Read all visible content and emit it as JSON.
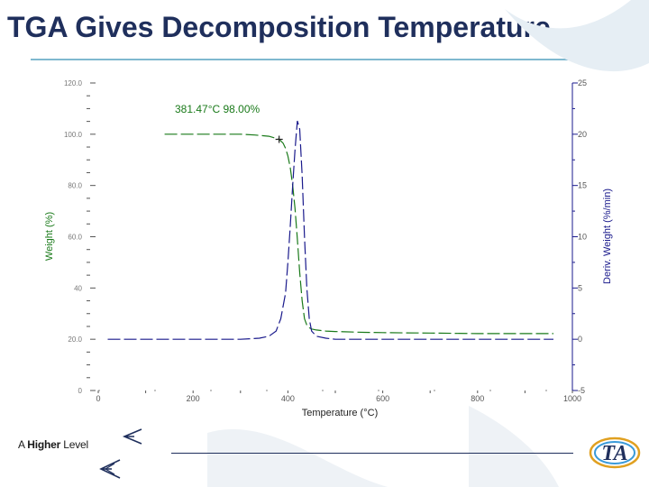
{
  "slide": {
    "title": "TGA Gives Decomposition Temperature",
    "footer_prefix": "A",
    "footer_bold": "Higher",
    "footer_suffix": "Level",
    "logo_text": "TA"
  },
  "colors": {
    "title": "#1f2f5c",
    "weight_series": "#1a7a1a",
    "deriv_series": "#1a1a8c",
    "rule": "#7fb8cf"
  },
  "chart_data": {
    "type": "line",
    "xlabel": "Temperature (°C)",
    "ylabel_left": "Weight (%)",
    "ylabel_right": "Deriv. Weight (%/min)",
    "xlim": [
      0,
      1000
    ],
    "ylim_left": [
      0,
      120
    ],
    "ylim_right": [
      -5,
      25
    ],
    "x_ticks": [
      0,
      200,
      400,
      600,
      800,
      1000
    ],
    "x_tick_labels": [
      "0",
      "200",
      "400",
      "600",
      "800",
      "1000"
    ],
    "y_left_ticks": [
      0,
      20,
      40,
      60,
      80,
      100,
      120
    ],
    "y_left_tick_labels": [
      "0",
      "20.0",
      "40",
      "60.0",
      "80.0",
      "100.0",
      "120.0"
    ],
    "y_right_ticks": [
      -5,
      0,
      5,
      10,
      15,
      20,
      25
    ],
    "y_right_tick_labels": [
      "-5",
      "0",
      "5",
      "10",
      "15",
      "20",
      "25"
    ],
    "annotation": {
      "text": "381.47°C 98.00%",
      "x": 381.47,
      "y": 98.0
    },
    "series": [
      {
        "axis": "left",
        "x": [
          140,
          200,
          250,
          300,
          330,
          360,
          381.47,
          390,
          395,
          400,
          405,
          410,
          415,
          420,
          425,
          430,
          435,
          440,
          445,
          450,
          460,
          470,
          480,
          500,
          520,
          540,
          560,
          600,
          650,
          700,
          750,
          800,
          850,
          900,
          960
        ],
        "y": [
          100,
          100,
          100,
          100,
          99.7,
          99.2,
          98.0,
          96.5,
          94.5,
          91.5,
          87,
          80,
          71,
          59,
          46,
          35,
          28,
          25.5,
          24.5,
          24,
          23.6,
          23.4,
          23.2,
          23.0,
          22.9,
          22.8,
          22.7,
          22.6,
          22.5,
          22.4,
          22.3,
          22.2,
          22.2,
          22.2,
          22.2
        ]
      },
      {
        "axis": "right",
        "x": [
          20,
          100,
          200,
          300,
          340,
          360,
          375,
          385,
          395,
          400,
          405,
          410,
          415,
          420,
          425,
          430,
          435,
          440,
          445,
          450,
          460,
          480,
          500,
          600,
          700,
          800,
          900,
          960
        ],
        "y": [
          0,
          0,
          0,
          0,
          0.1,
          0.3,
          0.8,
          2,
          4.5,
          7.5,
          11,
          15,
          18.5,
          21.3,
          20.5,
          16,
          10,
          5,
          2,
          0.8,
          0.3,
          0.1,
          0,
          0,
          0,
          0,
          0,
          0
        ]
      }
    ]
  }
}
